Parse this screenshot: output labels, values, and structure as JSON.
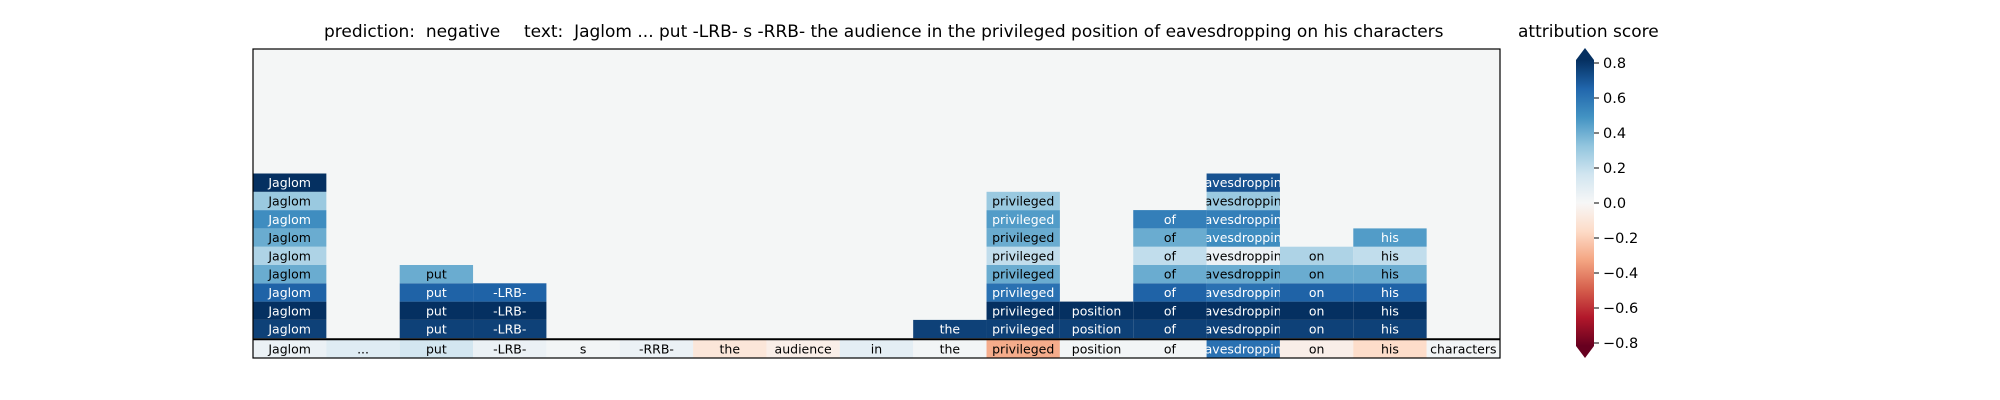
{
  "chart_data": {
    "type": "heatmap",
    "title_prediction": "prediction:  negative",
    "title_text": "text:  Jaglom ... put -LRB- s -RRB- the audience in the privileged position of eavesdropping on his characters",
    "colorbar_label": "attribution score",
    "colorbar_range": [
      -0.8,
      0.8
    ],
    "colorbar_ticks": [
      "0.8",
      "0.6",
      "0.4",
      "0.2",
      "0.0",
      "−0.2",
      "−0.4",
      "−0.6",
      "−0.8"
    ],
    "colormap": "RdBu",
    "colormap_stops": [
      "#67001f",
      "#b2182b",
      "#d6604d",
      "#f4a582",
      "#fddbc7",
      "#f7f7f7",
      "#d1e5f0",
      "#92c5de",
      "#4393c3",
      "#2166ac",
      "#053061"
    ],
    "background_color": "#f4f6f6",
    "tokens": [
      "Jaglom",
      "...",
      "put",
      "-LRB-",
      "s",
      "-RRB-",
      "the",
      "audience",
      "in",
      "the",
      "privileged",
      "position",
      "of",
      "eavesdropping",
      "on",
      "his",
      "characters"
    ],
    "full_text_attributions": [
      0.05,
      0.1,
      0.15,
      0.05,
      0.02,
      0.05,
      -0.1,
      -0.05,
      0.08,
      0.02,
      -0.3,
      0.02,
      0.02,
      0.6,
      -0.05,
      -0.15,
      0.02
    ],
    "levels": [
      [
        {
          "label": "Jaglom",
          "start": 0,
          "end": 1,
          "score": 0.75
        },
        {
          "label": "put",
          "start": 2,
          "end": 3,
          "score": 0.75
        },
        {
          "label": "-LRB-",
          "start": 3,
          "end": 4,
          "score": 0.75
        },
        {
          "label": "the",
          "start": 9,
          "end": 10,
          "score": 0.75
        },
        {
          "label": "privileged",
          "start": 10,
          "end": 11,
          "score": 0.75
        },
        {
          "label": "position",
          "start": 11,
          "end": 12,
          "score": 0.75
        },
        {
          "label": "of",
          "start": 12,
          "end": 13,
          "score": 0.75
        },
        {
          "label": "eavesdropping",
          "start": 13,
          "end": 14,
          "score": 0.75
        },
        {
          "label": "on",
          "start": 14,
          "end": 15,
          "score": 0.75
        },
        {
          "label": "his",
          "start": 15,
          "end": 16,
          "score": 0.75
        }
      ],
      [
        {
          "label": "Jaglom",
          "start": 0,
          "end": 1,
          "score": 0.85
        },
        {
          "label": "put",
          "start": 2,
          "end": 3,
          "score": 0.85
        },
        {
          "label": "-LRB-",
          "start": 3,
          "end": 4,
          "score": 0.85
        },
        {
          "label": "privileged",
          "start": 10,
          "end": 11,
          "score": 0.85
        },
        {
          "label": "position",
          "start": 11,
          "end": 12,
          "score": 0.85
        },
        {
          "label": "of",
          "start": 12,
          "end": 13,
          "score": 0.85
        },
        {
          "label": "eavesdropping",
          "start": 13,
          "end": 14,
          "score": 0.85
        },
        {
          "label": "on",
          "start": 14,
          "end": 15,
          "score": 0.85
        },
        {
          "label": "his",
          "start": 15,
          "end": 16,
          "score": 0.85
        }
      ],
      [
        {
          "label": "Jaglom",
          "start": 0,
          "end": 1,
          "score": 0.65
        },
        {
          "label": "put",
          "start": 2,
          "end": 3,
          "score": 0.65
        },
        {
          "label": "-LRB-",
          "start": 3,
          "end": 4,
          "score": 0.65
        },
        {
          "label": "privileged",
          "start": 10,
          "end": 11,
          "score": 0.6
        },
        {
          "label": "of",
          "start": 12,
          "end": 13,
          "score": 0.65
        },
        {
          "label": "eavesdropping",
          "start": 13,
          "end": 14,
          "score": 0.6
        },
        {
          "label": "on",
          "start": 14,
          "end": 15,
          "score": 0.65
        },
        {
          "label": "his",
          "start": 15,
          "end": 16,
          "score": 0.65
        }
      ],
      [
        {
          "label": "Jaglom",
          "start": 0,
          "end": 1,
          "score": 0.4
        },
        {
          "label": "put",
          "start": 2,
          "end": 3,
          "score": 0.4
        },
        {
          "label": "privileged",
          "start": 10,
          "end": 11,
          "score": 0.4
        },
        {
          "label": "of",
          "start": 12,
          "end": 13,
          "score": 0.4
        },
        {
          "label": "eavesdropping",
          "start": 13,
          "end": 14,
          "score": 0.4
        },
        {
          "label": "on",
          "start": 14,
          "end": 15,
          "score": 0.4
        },
        {
          "label": "his",
          "start": 15,
          "end": 16,
          "score": 0.4
        }
      ],
      [
        {
          "label": "Jaglom",
          "start": 0,
          "end": 1,
          "score": 0.25
        },
        {
          "label": "privileged",
          "start": 10,
          "end": 11,
          "score": 0.2
        },
        {
          "label": "of",
          "start": 12,
          "end": 13,
          "score": 0.2
        },
        {
          "label": "eavesdropping",
          "start": 13,
          "end": 14,
          "score": 0.05
        },
        {
          "label": "on",
          "start": 14,
          "end": 15,
          "score": 0.25
        },
        {
          "label": "his",
          "start": 15,
          "end": 16,
          "score": 0.2
        }
      ],
      [
        {
          "label": "Jaglom",
          "start": 0,
          "end": 1,
          "score": 0.4
        },
        {
          "label": "privileged",
          "start": 10,
          "end": 11,
          "score": 0.4
        },
        {
          "label": "of",
          "start": 12,
          "end": 13,
          "score": 0.4
        },
        {
          "label": "eavesdropping",
          "start": 13,
          "end": 14,
          "score": 0.5
        },
        {
          "label": "his",
          "start": 15,
          "end": 16,
          "score": 0.45
        }
      ],
      [
        {
          "label": "Jaglom",
          "start": 0,
          "end": 1,
          "score": 0.5
        },
        {
          "label": "privileged",
          "start": 10,
          "end": 11,
          "score": 0.45
        },
        {
          "label": "of",
          "start": 12,
          "end": 13,
          "score": 0.55
        },
        {
          "label": "eavesdropping",
          "start": 13,
          "end": 14,
          "score": 0.55
        }
      ],
      [
        {
          "label": "Jaglom",
          "start": 0,
          "end": 1,
          "score": 0.3
        },
        {
          "label": "privileged",
          "start": 10,
          "end": 11,
          "score": 0.3
        },
        {
          "label": "eavesdropping",
          "start": 13,
          "end": 14,
          "score": 0.3
        }
      ],
      [
        {
          "label": "Jaglom",
          "start": 0,
          "end": 1,
          "score": 0.85
        },
        {
          "label": "eavesdropping",
          "start": 13,
          "end": 14,
          "score": 0.7
        }
      ]
    ]
  }
}
